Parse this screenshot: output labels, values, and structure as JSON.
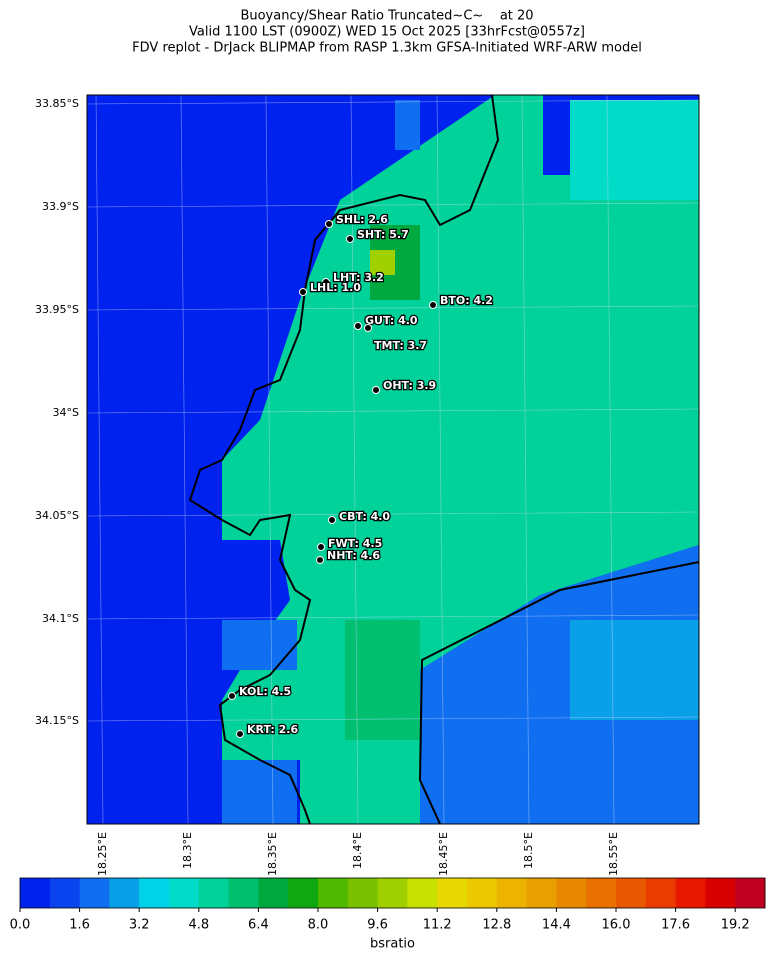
{
  "title": [
    "Buoyancy/Shear Ratio Truncated~C~    at 20",
    "Valid 1100 LST (0900Z) WED 15 Oct 2025 [33hrFcst@0557z]",
    "FDV replot - DrJack BLIPMAP from RASP 1.3km GFSA-Initiated WRF-ARW model"
  ],
  "lat_labels": [
    "33.85°S",
    "33.9°S",
    "33.95°S",
    "34°S",
    "34.05°S",
    "34.1°S",
    "34.15°S"
  ],
  "lon_labels": [
    "18.25°E",
    "18.3°E",
    "18.35°E",
    "18.4°E",
    "18.45°E",
    "18.5°E",
    "18.55°E"
  ],
  "stations": [
    "SHL: 2.6",
    "SHT: 5.7",
    "LHT: 3.2",
    "LHL: 1.0",
    "BTO: 4.2",
    "GUT: 4.0",
    "TMT: 3.7",
    "OHT: 3.9",
    "CBT: 4.0",
    "FWT: 4.5",
    "NHT: 4.6",
    "KOL: 4.5",
    "KRT: 2.6"
  ],
  "colorbar": {
    "label": "bsratio",
    "clim": [
      0,
      20
    ],
    "ticks": [
      {
        "value": 0,
        "label": "0.0"
      },
      1.6,
      3.2,
      4.8,
      6.4,
      {
        "value": 8,
        "label": "8.0"
      },
      9.6,
      11.2,
      12.8,
      14.4,
      {
        "value": 16,
        "label": "16.0"
      },
      17.6,
      19.2
    ],
    "colors": [
      "#0022ee",
      "#0a44ee",
      "#0f6ff0",
      "#0aa0e8",
      "#00d2e8",
      "#00dcc8",
      "#00d29a",
      "#00c070",
      "#00a840",
      "#10a810",
      "#50b800",
      "#78c000",
      "#a0d000",
      "#c8e000",
      "#e6d800",
      "#ecc800",
      "#ecb400",
      "#e8a000",
      "#e88800",
      "#e87000",
      "#e85800",
      "#e83c00",
      "#e81800",
      "#d80000",
      "#c00020"
    ]
  }
}
